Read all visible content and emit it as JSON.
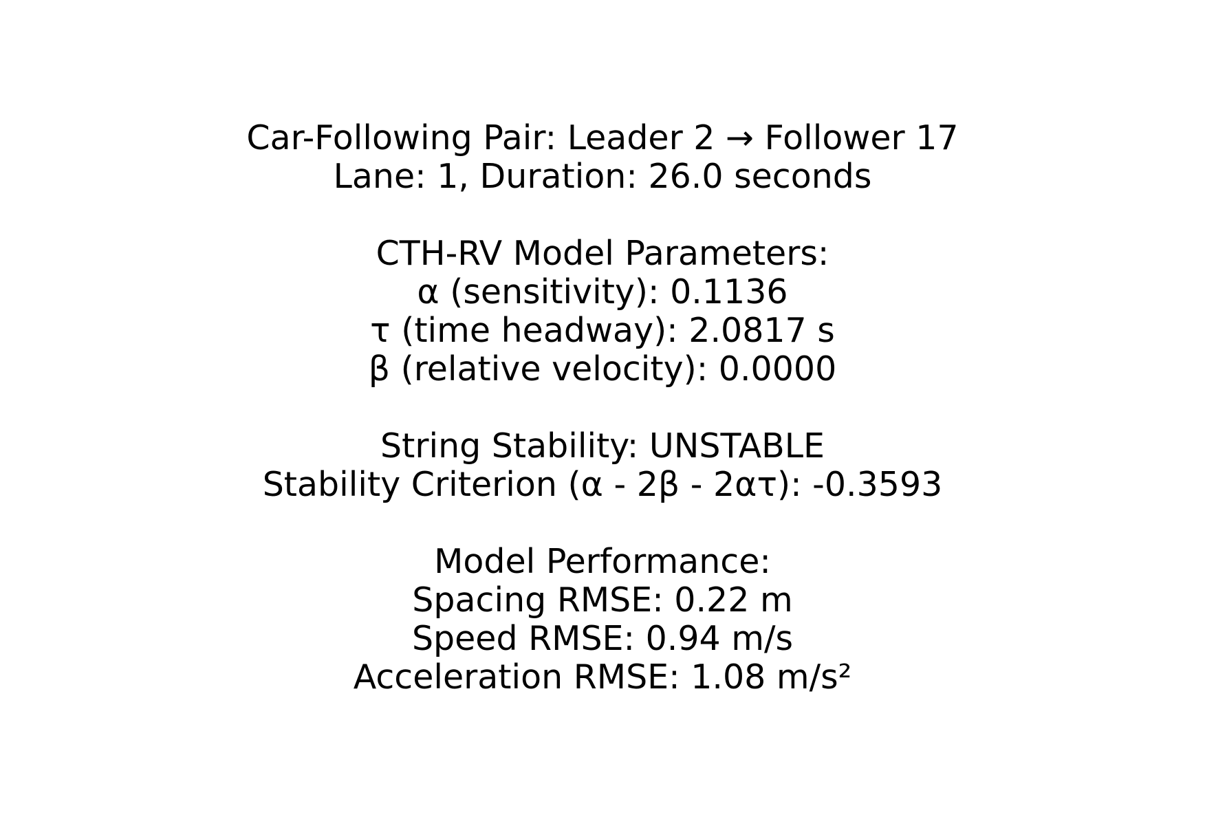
{
  "summary": {
    "pair": {
      "line1": "Car-Following Pair: Leader 2 → Follower 17",
      "line2": "Lane: 1, Duration: 26.0 seconds"
    },
    "parameters": {
      "heading": "CTH-RV Model Parameters:",
      "alpha": "α (sensitivity): 0.1136",
      "tau": "τ (time headway): 2.0817 s",
      "beta": "β (relative velocity): 0.0000"
    },
    "stability": {
      "status": "String Stability: UNSTABLE",
      "criterion": "Stability Criterion (α - 2β - 2ατ): -0.3593"
    },
    "performance": {
      "heading": "Model Performance:",
      "spacing": "Spacing RMSE: 0.22 m",
      "speed": "Speed RMSE: 0.94 m/s",
      "acceleration": "Acceleration RMSE: 1.08 m/s²"
    }
  }
}
